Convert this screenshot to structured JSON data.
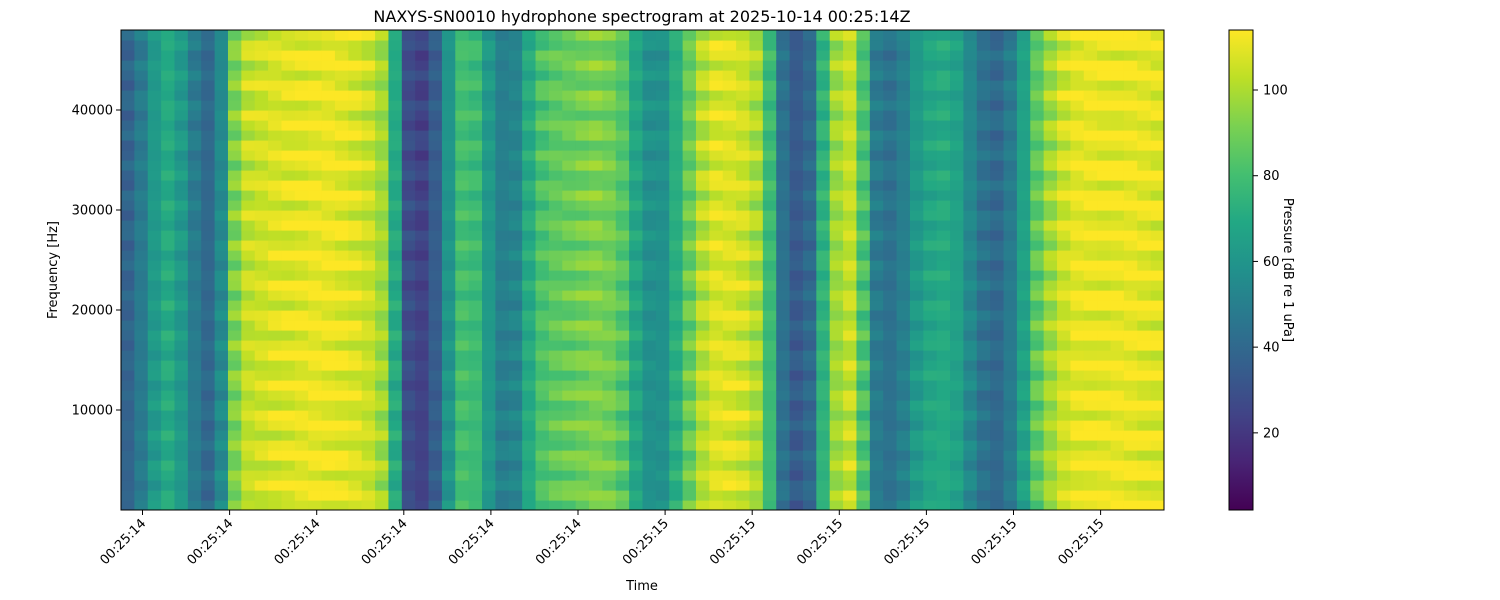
{
  "chart_data": {
    "type": "heatmap",
    "title": "NAXYS-SN0010 hydrophone spectrogram at 2025-10-14 00:25:14Z",
    "xlabel": "Time",
    "ylabel": "Frequency [Hz]",
    "colorbar_label": "Pressure [dB re 1 uPa]",
    "colormap": "viridis",
    "ylim": [
      0,
      48000
    ],
    "yticks": [
      10000,
      20000,
      30000,
      40000
    ],
    "ytick_labels": [
      "10000",
      "20000",
      "30000",
      "40000"
    ],
    "xtick_labels": [
      "00:25:14",
      "00:25:14",
      "00:25:14",
      "00:25:14",
      "00:25:14",
      "00:25:14",
      "00:25:15",
      "00:25:15",
      "00:25:15",
      "00:25:15",
      "00:25:15",
      "00:25:15"
    ],
    "clim": [
      2,
      114
    ],
    "cticks": [
      20,
      40,
      60,
      80,
      100
    ],
    "ctick_labels": [
      "20",
      "40",
      "60",
      "80",
      "100"
    ],
    "time_profile_db": [
      38,
      48,
      62,
      70,
      62,
      48,
      40,
      55,
      92,
      104,
      106,
      108,
      109,
      110,
      111,
      111,
      110,
      108,
      105,
      98,
      70,
      28,
      24,
      35,
      60,
      80,
      78,
      62,
      50,
      52,
      70,
      82,
      86,
      88,
      90,
      92,
      90,
      84,
      68,
      58,
      58,
      72,
      88,
      102,
      108,
      108,
      106,
      100,
      78,
      44,
      34,
      40,
      74,
      98,
      104,
      82,
      48,
      44,
      50,
      62,
      68,
      70,
      66,
      54,
      44,
      40,
      48,
      66,
      86,
      98,
      106,
      110,
      111,
      111,
      111,
      111,
      110,
      109
    ]
  }
}
